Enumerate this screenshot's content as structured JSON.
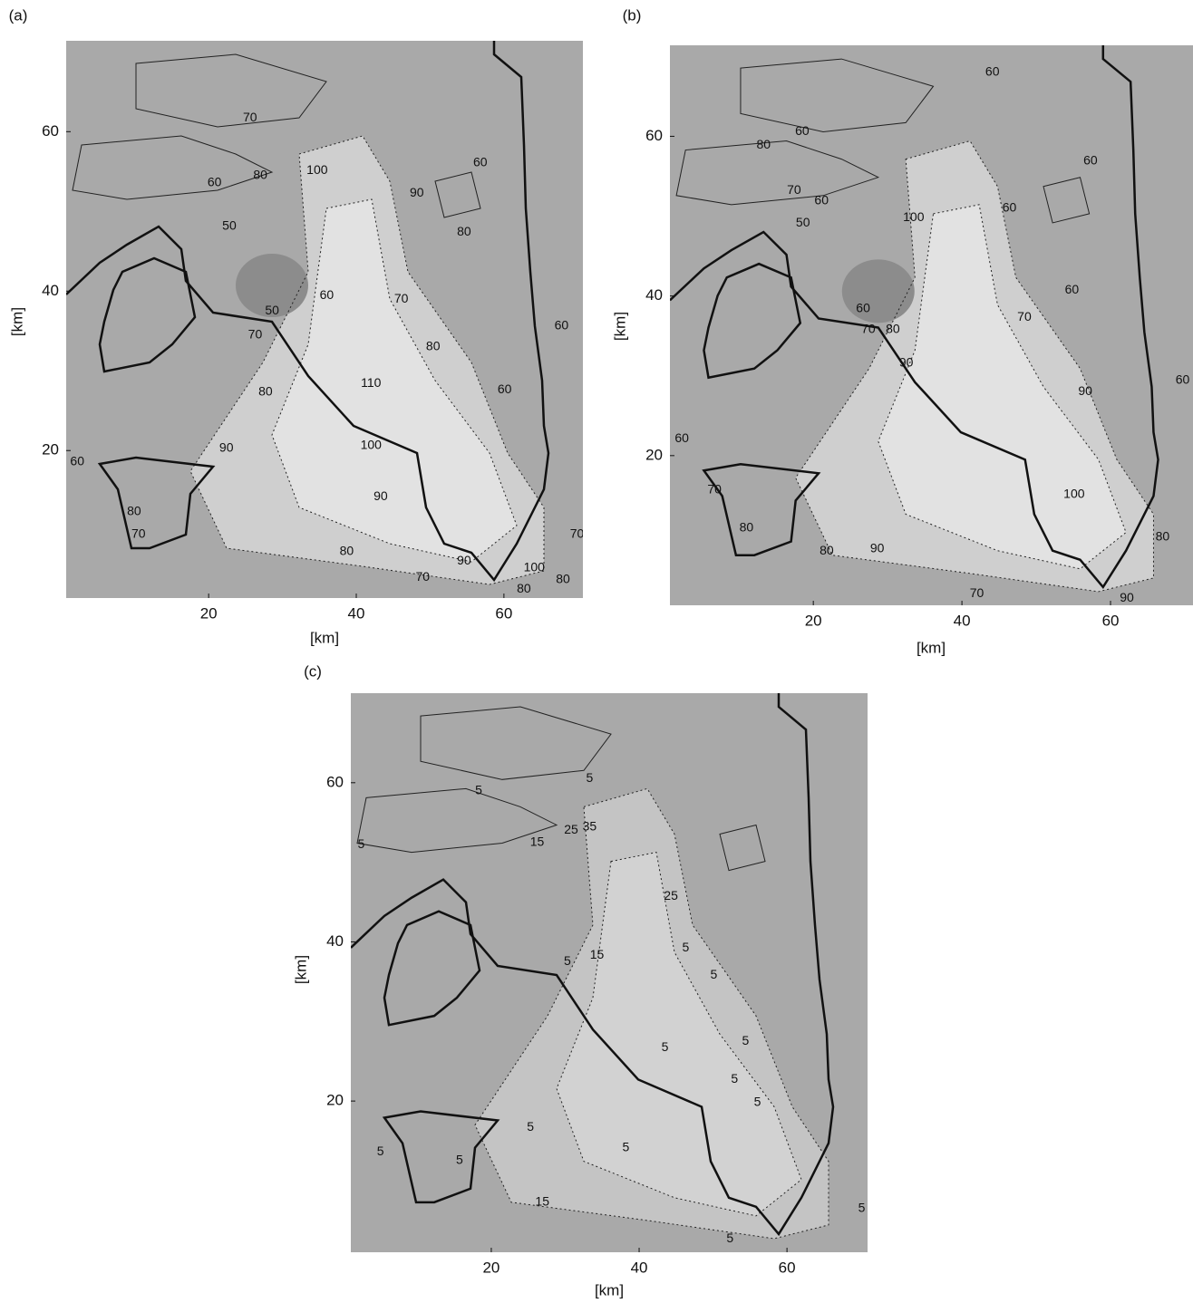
{
  "chart_data": [
    {
      "type": "contour",
      "panel_label": "(a)",
      "xlabel": "[km]",
      "ylabel": "[km]",
      "xlim": [
        0.7,
        70.7
      ],
      "ylim": [
        1.5,
        71.4
      ],
      "xticks": [
        20,
        40,
        60
      ],
      "yticks": [
        20,
        40,
        60
      ],
      "contour_labels": [
        {
          "x": 20.8,
          "y": 53.6,
          "value": 60
        },
        {
          "x": 22.8,
          "y": 48.1,
          "value": 50
        },
        {
          "x": 25.6,
          "y": 61.7,
          "value": 70
        },
        {
          "x": 27,
          "y": 54.5,
          "value": 80
        },
        {
          "x": 28.6,
          "y": 37.5,
          "value": 50
        },
        {
          "x": 36,
          "y": 39.4,
          "value": 60
        },
        {
          "x": 26.3,
          "y": 34.5,
          "value": 70
        },
        {
          "x": 27.7,
          "y": 27.3,
          "value": 80
        },
        {
          "x": 22.4,
          "y": 20.3,
          "value": 90
        },
        {
          "x": 42,
          "y": 20.6,
          "value": 100
        },
        {
          "x": 42,
          "y": 28.4,
          "value": 110
        },
        {
          "x": 43.3,
          "y": 14.2,
          "value": 90
        },
        {
          "x": 38.7,
          "y": 7.3,
          "value": 80
        },
        {
          "x": 49,
          "y": 4.1,
          "value": 70
        },
        {
          "x": 54.6,
          "y": 6.1,
          "value": 90
        },
        {
          "x": 64.1,
          "y": 5.3,
          "value": 100
        },
        {
          "x": 62.7,
          "y": 2.6,
          "value": 80
        },
        {
          "x": 2.2,
          "y": 18.6,
          "value": 60
        },
        {
          "x": 9.9,
          "y": 12.3,
          "value": 80
        },
        {
          "x": 10.5,
          "y": 9.5,
          "value": 70
        },
        {
          "x": 60.1,
          "y": 27.6,
          "value": 60
        },
        {
          "x": 56.8,
          "y": 56.1,
          "value": 60
        },
        {
          "x": 54.6,
          "y": 47.4,
          "value": 80
        },
        {
          "x": 67.8,
          "y": 35.6,
          "value": 60
        },
        {
          "x": 69.9,
          "y": 9.5,
          "value": 70
        },
        {
          "x": 68,
          "y": 3.8,
          "value": 80
        },
        {
          "x": 48.2,
          "y": 52.3,
          "value": 90
        },
        {
          "x": 34.7,
          "y": 55.1,
          "value": 100
        },
        {
          "x": 46.1,
          "y": 39,
          "value": 70
        },
        {
          "x": 50.4,
          "y": 33,
          "value": 80
        }
      ]
    },
    {
      "type": "contour",
      "panel_label": "(b)",
      "xlabel": "[km]",
      "ylabel": "[km]",
      "xlim": [
        0.7,
        71.1
      ],
      "ylim": [
        1.25,
        71.4
      ],
      "xticks": [
        20,
        40,
        60
      ],
      "yticks": [
        20,
        40,
        60
      ],
      "contour_labels": [
        {
          "x": 18.5,
          "y": 60.6,
          "value": 60
        },
        {
          "x": 13.3,
          "y": 58.9,
          "value": 80
        },
        {
          "x": 17.4,
          "y": 53.2,
          "value": 70
        },
        {
          "x": 21.1,
          "y": 51.9,
          "value": 60
        },
        {
          "x": 18.6,
          "y": 49.1,
          "value": 50
        },
        {
          "x": 33.5,
          "y": 49.8,
          "value": 100
        },
        {
          "x": 46.4,
          "y": 51,
          "value": 60
        },
        {
          "x": 54.8,
          "y": 40.7,
          "value": 60
        },
        {
          "x": 48.4,
          "y": 37.3,
          "value": 70
        },
        {
          "x": 26.7,
          "y": 38.4,
          "value": 60
        },
        {
          "x": 30.7,
          "y": 35.8,
          "value": 80
        },
        {
          "x": 27.4,
          "y": 35.8,
          "value": 70
        },
        {
          "x": 32.5,
          "y": 31.6,
          "value": 90
        },
        {
          "x": 56.6,
          "y": 28,
          "value": 90
        },
        {
          "x": 55.1,
          "y": 15.1,
          "value": 100
        },
        {
          "x": 21.8,
          "y": 8,
          "value": 80
        },
        {
          "x": 28.6,
          "y": 8.3,
          "value": 90
        },
        {
          "x": 42,
          "y": 2.7,
          "value": 70
        },
        {
          "x": 62.2,
          "y": 2.1,
          "value": 90
        },
        {
          "x": 67,
          "y": 9.8,
          "value": 80
        },
        {
          "x": 6.7,
          "y": 15.7,
          "value": 70
        },
        {
          "x": 11,
          "y": 10.9,
          "value": 80
        },
        {
          "x": 2.3,
          "y": 22.1,
          "value": 60
        },
        {
          "x": 57.3,
          "y": 56.9,
          "value": 60
        },
        {
          "x": 44.1,
          "y": 68,
          "value": 60
        },
        {
          "x": 69.7,
          "y": 29.4,
          "value": 60
        }
      ]
    },
    {
      "type": "contour",
      "panel_label": "(c)",
      "xlabel": "[km]",
      "ylabel": "[km]",
      "xlim": [
        1,
        70.9
      ],
      "ylim": [
        1,
        71.25
      ],
      "xticks": [
        20,
        40,
        60
      ],
      "yticks": [
        20,
        40,
        60
      ],
      "contour_labels": [
        {
          "x": 18.3,
          "y": 59,
          "value": 5
        },
        {
          "x": 2.4,
          "y": 52.2,
          "value": 5
        },
        {
          "x": 26.2,
          "y": 52.5,
          "value": 15
        },
        {
          "x": 30.8,
          "y": 54,
          "value": 25
        },
        {
          "x": 33.3,
          "y": 54.4,
          "value": 35
        },
        {
          "x": 44.3,
          "y": 45.7,
          "value": 25
        },
        {
          "x": 33.3,
          "y": 60.5,
          "value": 5
        },
        {
          "x": 34.3,
          "y": 38.3,
          "value": 15
        },
        {
          "x": 30.3,
          "y": 37.5,
          "value": 5
        },
        {
          "x": 43.5,
          "y": 26.7,
          "value": 5
        },
        {
          "x": 50.1,
          "y": 35.8,
          "value": 5
        },
        {
          "x": 54.4,
          "y": 27.5,
          "value": 5
        },
        {
          "x": 52.9,
          "y": 22.7,
          "value": 5
        },
        {
          "x": 56,
          "y": 19.8,
          "value": 5
        },
        {
          "x": 25.3,
          "y": 16.7,
          "value": 5
        },
        {
          "x": 5,
          "y": 13.6,
          "value": 5
        },
        {
          "x": 15.7,
          "y": 12.5,
          "value": 5
        },
        {
          "x": 26.9,
          "y": 7.3,
          "value": 15
        },
        {
          "x": 38.2,
          "y": 14.1,
          "value": 5
        },
        {
          "x": 52.3,
          "y": 2.7,
          "value": 5
        },
        {
          "x": 70.1,
          "y": 6.5,
          "value": 5
        },
        {
          "x": 46.3,
          "y": 39.2,
          "value": 5
        }
      ]
    }
  ]
}
